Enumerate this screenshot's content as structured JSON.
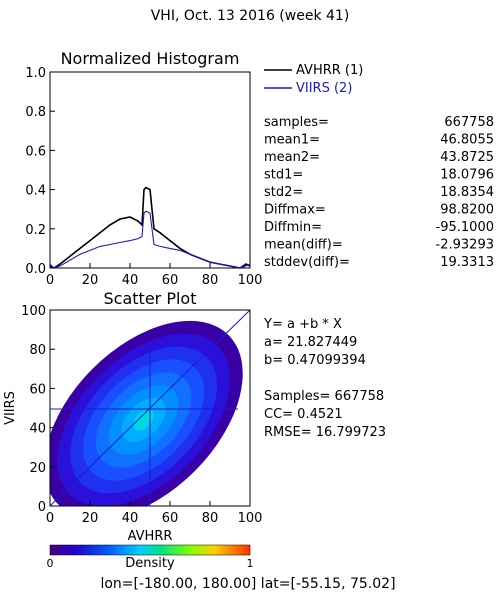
{
  "page": {
    "title": "VHI,  Oct. 13 2016 (week 41)",
    "footer": "lon=[-180.00, 180.00] lat=[-55.15, 75.02]"
  },
  "histogram": {
    "title": "Normalized Histogram",
    "xticks": [
      "0",
      "20",
      "40",
      "60",
      "80",
      "100"
    ],
    "yticks": [
      "0.0",
      "0.2",
      "0.4",
      "0.6",
      "0.8",
      "1.0"
    ],
    "legend": [
      {
        "label": "AVHRR (1)",
        "color": "#000000"
      },
      {
        "label": "VIIRS (2)",
        "color": "#1a1acc"
      }
    ]
  },
  "stats": [
    {
      "name": "samples=",
      "value": "667758"
    },
    {
      "name": "mean1=",
      "value": "46.8055"
    },
    {
      "name": "mean2=",
      "value": "43.8725"
    },
    {
      "name": "std1=",
      "value": "18.0796"
    },
    {
      "name": "std2=",
      "value": "18.8354"
    },
    {
      "name": "Diffmax=",
      "value": "98.8200"
    },
    {
      "name": "Diffmin=",
      "value": "-95.1000"
    },
    {
      "name": "mean(diff)=",
      "value": "-2.93293"
    },
    {
      "name": "stddev(diff)=",
      "value": "19.3313"
    }
  ],
  "scatter": {
    "title": "Scatter Plot",
    "xlabel": "AVHRR",
    "ylabel": "VIIRS",
    "xticks": [
      "0",
      "20",
      "40",
      "60",
      "80",
      "100"
    ],
    "yticks": [
      "0",
      "20",
      "40",
      "60",
      "80",
      "100"
    ],
    "regression": {
      "equation": "Y= a +b * X",
      "a": "a= 21.827449",
      "b": "b= 0.47099394",
      "samples": "Samples= 667758",
      "cc": "CC=  0.4521",
      "rmse": "RMSE= 16.799723"
    }
  },
  "colorbar": {
    "label": "Density",
    "min_label": "0",
    "max_label": "1"
  },
  "chart_data": [
    {
      "type": "line",
      "title": "Normalized Histogram",
      "xlim": [
        0,
        100
      ],
      "ylim": [
        0,
        1
      ],
      "series": [
        {
          "name": "AVHRR (1)",
          "color": "#000000",
          "x": [
            0,
            2,
            5,
            10,
            15,
            20,
            25,
            30,
            35,
            40,
            44,
            46,
            47,
            48,
            50,
            52,
            55,
            60,
            65,
            70,
            75,
            80,
            85,
            90,
            95,
            98,
            100
          ],
          "values": [
            0.01,
            0.0,
            0.02,
            0.06,
            0.1,
            0.14,
            0.18,
            0.22,
            0.25,
            0.26,
            0.24,
            0.22,
            0.4,
            0.41,
            0.4,
            0.2,
            0.18,
            0.14,
            0.1,
            0.07,
            0.05,
            0.03,
            0.02,
            0.01,
            0.0,
            0.02,
            0.01
          ]
        },
        {
          "name": "VIIRS (2)",
          "color": "#1a1acc",
          "x": [
            0,
            2,
            5,
            10,
            15,
            20,
            25,
            30,
            35,
            40,
            44,
            46,
            47,
            48,
            50,
            52,
            55,
            60,
            65,
            70,
            75,
            80,
            85,
            90,
            95,
            98,
            100
          ],
          "values": [
            0.02,
            0.0,
            0.01,
            0.04,
            0.07,
            0.09,
            0.11,
            0.12,
            0.13,
            0.14,
            0.15,
            0.16,
            0.28,
            0.29,
            0.28,
            0.12,
            0.11,
            0.1,
            0.09,
            0.07,
            0.05,
            0.03,
            0.02,
            0.01,
            0.0,
            0.01,
            0.02
          ]
        }
      ]
    },
    {
      "type": "scatter",
      "title": "Scatter Plot",
      "xlabel": "AVHRR",
      "ylabel": "VIIRS",
      "xlim": [
        0,
        100
      ],
      "ylim": [
        0,
        100
      ],
      "samples": 667758,
      "mean_x": 46.8055,
      "mean_y": 43.8725,
      "std_x": 18.0796,
      "std_y": 18.8354,
      "cc": 0.4521,
      "regression": {
        "a": 21.827449,
        "b": 0.47099394
      },
      "colorbar": {
        "label": "Density",
        "range": [
          0,
          1
        ]
      }
    }
  ]
}
